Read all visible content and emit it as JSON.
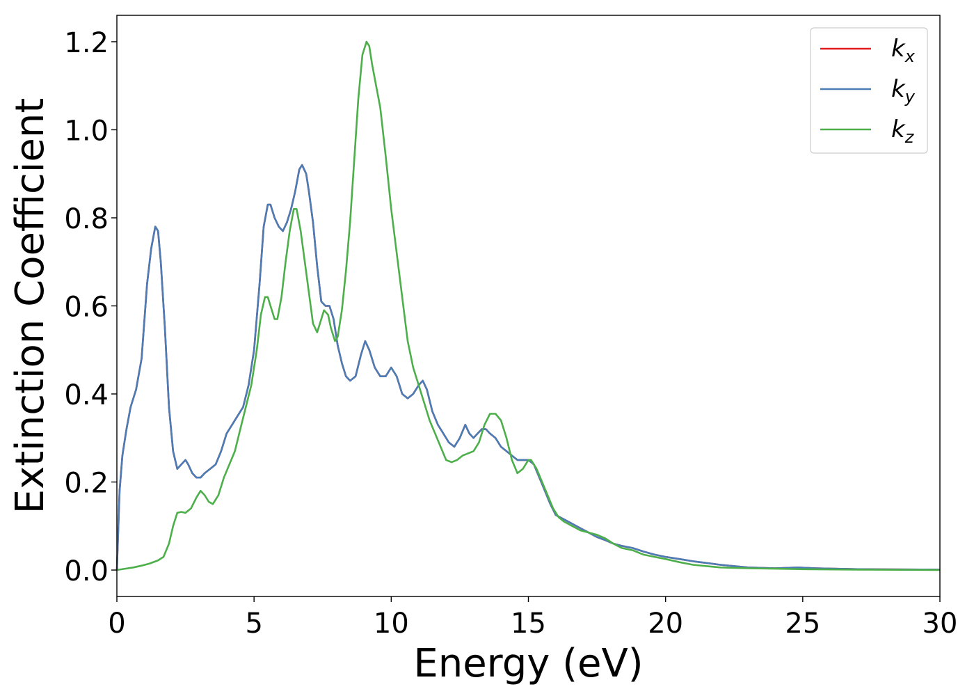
{
  "chart_data": {
    "type": "line",
    "xlabel": "Energy (eV)",
    "ylabel": "Extinction Coefficient",
    "xlim": [
      0,
      30
    ],
    "ylim": [
      -0.06,
      1.26
    ],
    "xticks": [
      0,
      5,
      10,
      15,
      20,
      25,
      30
    ],
    "xtick_labels": [
      "0",
      "5",
      "10",
      "15",
      "20",
      "25",
      "30"
    ],
    "yticks": [
      0.0,
      0.2,
      0.4,
      0.6,
      0.8,
      1.0,
      1.2
    ],
    "ytick_labels": [
      "0.0",
      "0.2",
      "0.4",
      "0.6",
      "0.8",
      "1.0",
      "1.2"
    ],
    "grid": false,
    "legend_position": "top-right",
    "series": [
      {
        "name": "k",
        "subscript": "x",
        "color": "#e41a1c",
        "x": [
          0,
          0.1,
          0.2,
          0.35,
          0.5,
          0.7,
          0.9,
          1.1,
          1.25,
          1.4,
          1.5,
          1.6,
          1.75,
          1.9,
          2.05,
          2.2,
          2.35,
          2.5,
          2.6,
          2.75,
          2.9,
          3.05,
          3.2,
          3.4,
          3.6,
          3.8,
          4.0,
          4.2,
          4.4,
          4.6,
          4.8,
          5.0,
          5.2,
          5.35,
          5.5,
          5.6,
          5.75,
          5.9,
          6.05,
          6.2,
          6.35,
          6.5,
          6.65,
          6.75,
          6.9,
          7.0,
          7.15,
          7.3,
          7.45,
          7.6,
          7.75,
          7.9,
          8.05,
          8.2,
          8.35,
          8.5,
          8.7,
          8.9,
          9.05,
          9.2,
          9.4,
          9.6,
          9.8,
          10.0,
          10.2,
          10.4,
          10.6,
          10.8,
          11.0,
          11.15,
          11.3,
          11.5,
          11.7,
          11.9,
          12.1,
          12.3,
          12.5,
          12.7,
          12.85,
          13.0,
          13.15,
          13.3,
          13.45,
          13.6,
          13.8,
          14.0,
          14.2,
          14.4,
          14.6,
          14.8,
          15.0,
          15.2,
          15.4,
          15.6,
          15.8,
          16.0,
          16.3,
          16.6,
          16.9,
          17.2,
          17.5,
          17.8,
          18.1,
          18.4,
          18.8,
          19.2,
          19.6,
          20.0,
          20.5,
          21.0,
          22.0,
          23.0,
          24.0,
          24.8,
          25.5,
          27.0,
          30.0
        ],
        "values": [
          0.0,
          0.18,
          0.26,
          0.32,
          0.37,
          0.41,
          0.48,
          0.65,
          0.73,
          0.78,
          0.77,
          0.7,
          0.55,
          0.37,
          0.27,
          0.23,
          0.24,
          0.25,
          0.24,
          0.22,
          0.21,
          0.21,
          0.22,
          0.23,
          0.24,
          0.27,
          0.31,
          0.33,
          0.35,
          0.37,
          0.42,
          0.5,
          0.65,
          0.78,
          0.83,
          0.83,
          0.8,
          0.78,
          0.77,
          0.79,
          0.82,
          0.86,
          0.91,
          0.92,
          0.9,
          0.86,
          0.79,
          0.69,
          0.61,
          0.6,
          0.6,
          0.57,
          0.51,
          0.47,
          0.44,
          0.43,
          0.44,
          0.49,
          0.52,
          0.5,
          0.46,
          0.44,
          0.44,
          0.46,
          0.44,
          0.4,
          0.39,
          0.4,
          0.42,
          0.43,
          0.41,
          0.36,
          0.33,
          0.31,
          0.29,
          0.28,
          0.3,
          0.33,
          0.31,
          0.3,
          0.31,
          0.32,
          0.32,
          0.31,
          0.3,
          0.28,
          0.27,
          0.26,
          0.25,
          0.25,
          0.25,
          0.24,
          0.21,
          0.18,
          0.15,
          0.125,
          0.115,
          0.105,
          0.095,
          0.085,
          0.075,
          0.068,
          0.06,
          0.055,
          0.05,
          0.042,
          0.035,
          0.03,
          0.025,
          0.02,
          0.012,
          0.006,
          0.004,
          0.006,
          0.004,
          0.002,
          0.001
        ]
      },
      {
        "name": "k",
        "subscript": "y",
        "color": "#4a7db5",
        "x": [
          0,
          0.1,
          0.2,
          0.35,
          0.5,
          0.7,
          0.9,
          1.1,
          1.25,
          1.4,
          1.5,
          1.6,
          1.75,
          1.9,
          2.05,
          2.2,
          2.35,
          2.5,
          2.6,
          2.75,
          2.9,
          3.05,
          3.2,
          3.4,
          3.6,
          3.8,
          4.0,
          4.2,
          4.4,
          4.6,
          4.8,
          5.0,
          5.2,
          5.35,
          5.5,
          5.6,
          5.75,
          5.9,
          6.05,
          6.2,
          6.35,
          6.5,
          6.65,
          6.75,
          6.9,
          7.0,
          7.15,
          7.3,
          7.45,
          7.6,
          7.75,
          7.9,
          8.05,
          8.2,
          8.35,
          8.5,
          8.7,
          8.9,
          9.05,
          9.2,
          9.4,
          9.6,
          9.8,
          10.0,
          10.2,
          10.4,
          10.6,
          10.8,
          11.0,
          11.15,
          11.3,
          11.5,
          11.7,
          11.9,
          12.1,
          12.3,
          12.5,
          12.7,
          12.85,
          13.0,
          13.15,
          13.3,
          13.45,
          13.6,
          13.8,
          14.0,
          14.2,
          14.4,
          14.6,
          14.8,
          15.0,
          15.2,
          15.4,
          15.6,
          15.8,
          16.0,
          16.3,
          16.6,
          16.9,
          17.2,
          17.5,
          17.8,
          18.1,
          18.4,
          18.8,
          19.2,
          19.6,
          20.0,
          20.5,
          21.0,
          22.0,
          23.0,
          24.0,
          24.8,
          25.5,
          27.0,
          30.0
        ],
        "values": [
          0.0,
          0.18,
          0.26,
          0.32,
          0.37,
          0.41,
          0.48,
          0.65,
          0.73,
          0.78,
          0.77,
          0.7,
          0.55,
          0.37,
          0.27,
          0.23,
          0.24,
          0.25,
          0.24,
          0.22,
          0.21,
          0.21,
          0.22,
          0.23,
          0.24,
          0.27,
          0.31,
          0.33,
          0.35,
          0.37,
          0.42,
          0.5,
          0.65,
          0.78,
          0.83,
          0.83,
          0.8,
          0.78,
          0.77,
          0.79,
          0.82,
          0.86,
          0.91,
          0.92,
          0.9,
          0.86,
          0.79,
          0.69,
          0.61,
          0.6,
          0.6,
          0.57,
          0.51,
          0.47,
          0.44,
          0.43,
          0.44,
          0.49,
          0.52,
          0.5,
          0.46,
          0.44,
          0.44,
          0.46,
          0.44,
          0.4,
          0.39,
          0.4,
          0.42,
          0.43,
          0.41,
          0.36,
          0.33,
          0.31,
          0.29,
          0.28,
          0.3,
          0.33,
          0.31,
          0.3,
          0.31,
          0.32,
          0.32,
          0.31,
          0.3,
          0.28,
          0.27,
          0.26,
          0.25,
          0.25,
          0.25,
          0.24,
          0.21,
          0.18,
          0.15,
          0.125,
          0.115,
          0.105,
          0.095,
          0.085,
          0.075,
          0.068,
          0.06,
          0.055,
          0.05,
          0.042,
          0.035,
          0.03,
          0.025,
          0.02,
          0.012,
          0.006,
          0.004,
          0.006,
          0.004,
          0.002,
          0.001
        ]
      },
      {
        "name": "k",
        "subscript": "z",
        "color": "#4daf4a",
        "x": [
          0,
          0.3,
          0.6,
          0.9,
          1.2,
          1.5,
          1.7,
          1.9,
          2.05,
          2.2,
          2.35,
          2.5,
          2.7,
          2.9,
          3.05,
          3.2,
          3.35,
          3.5,
          3.7,
          3.9,
          4.1,
          4.3,
          4.5,
          4.7,
          4.9,
          5.1,
          5.25,
          5.4,
          5.5,
          5.6,
          5.75,
          5.85,
          6.0,
          6.15,
          6.3,
          6.45,
          6.55,
          6.7,
          6.85,
          7.0,
          7.15,
          7.3,
          7.45,
          7.55,
          7.7,
          7.8,
          7.95,
          8.05,
          8.2,
          8.35,
          8.5,
          8.65,
          8.8,
          8.95,
          9.1,
          9.2,
          9.3,
          9.45,
          9.6,
          9.8,
          10.0,
          10.2,
          10.4,
          10.6,
          10.8,
          11.0,
          11.2,
          11.4,
          11.6,
          11.8,
          12.0,
          12.2,
          12.4,
          12.6,
          12.8,
          13.0,
          13.2,
          13.4,
          13.6,
          13.8,
          14.0,
          14.2,
          14.4,
          14.6,
          14.8,
          15.0,
          15.1,
          15.3,
          15.5,
          15.7,
          15.9,
          16.1,
          16.3,
          16.6,
          16.9,
          17.2,
          17.5,
          17.8,
          18.1,
          18.4,
          18.8,
          19.2,
          19.6,
          20.0,
          20.5,
          21.0,
          22.0,
          23.0,
          24.0,
          25.0,
          27.0,
          30.0
        ],
        "values": [
          0.0,
          0.003,
          0.006,
          0.01,
          0.015,
          0.022,
          0.03,
          0.06,
          0.1,
          0.13,
          0.132,
          0.13,
          0.14,
          0.165,
          0.18,
          0.17,
          0.155,
          0.15,
          0.17,
          0.21,
          0.24,
          0.27,
          0.32,
          0.37,
          0.42,
          0.5,
          0.58,
          0.62,
          0.62,
          0.6,
          0.57,
          0.57,
          0.62,
          0.7,
          0.77,
          0.82,
          0.82,
          0.77,
          0.7,
          0.63,
          0.56,
          0.54,
          0.57,
          0.59,
          0.58,
          0.55,
          0.52,
          0.53,
          0.59,
          0.68,
          0.79,
          0.93,
          1.07,
          1.17,
          1.2,
          1.19,
          1.15,
          1.1,
          1.05,
          0.94,
          0.82,
          0.72,
          0.62,
          0.52,
          0.46,
          0.42,
          0.38,
          0.34,
          0.31,
          0.28,
          0.25,
          0.245,
          0.25,
          0.26,
          0.265,
          0.27,
          0.29,
          0.33,
          0.355,
          0.355,
          0.34,
          0.3,
          0.25,
          0.22,
          0.23,
          0.25,
          0.25,
          0.23,
          0.2,
          0.17,
          0.14,
          0.12,
          0.11,
          0.1,
          0.09,
          0.085,
          0.08,
          0.072,
          0.06,
          0.05,
          0.045,
          0.035,
          0.03,
          0.025,
          0.018,
          0.012,
          0.006,
          0.004,
          0.003,
          0.002,
          0.001,
          0.0
        ]
      }
    ]
  }
}
